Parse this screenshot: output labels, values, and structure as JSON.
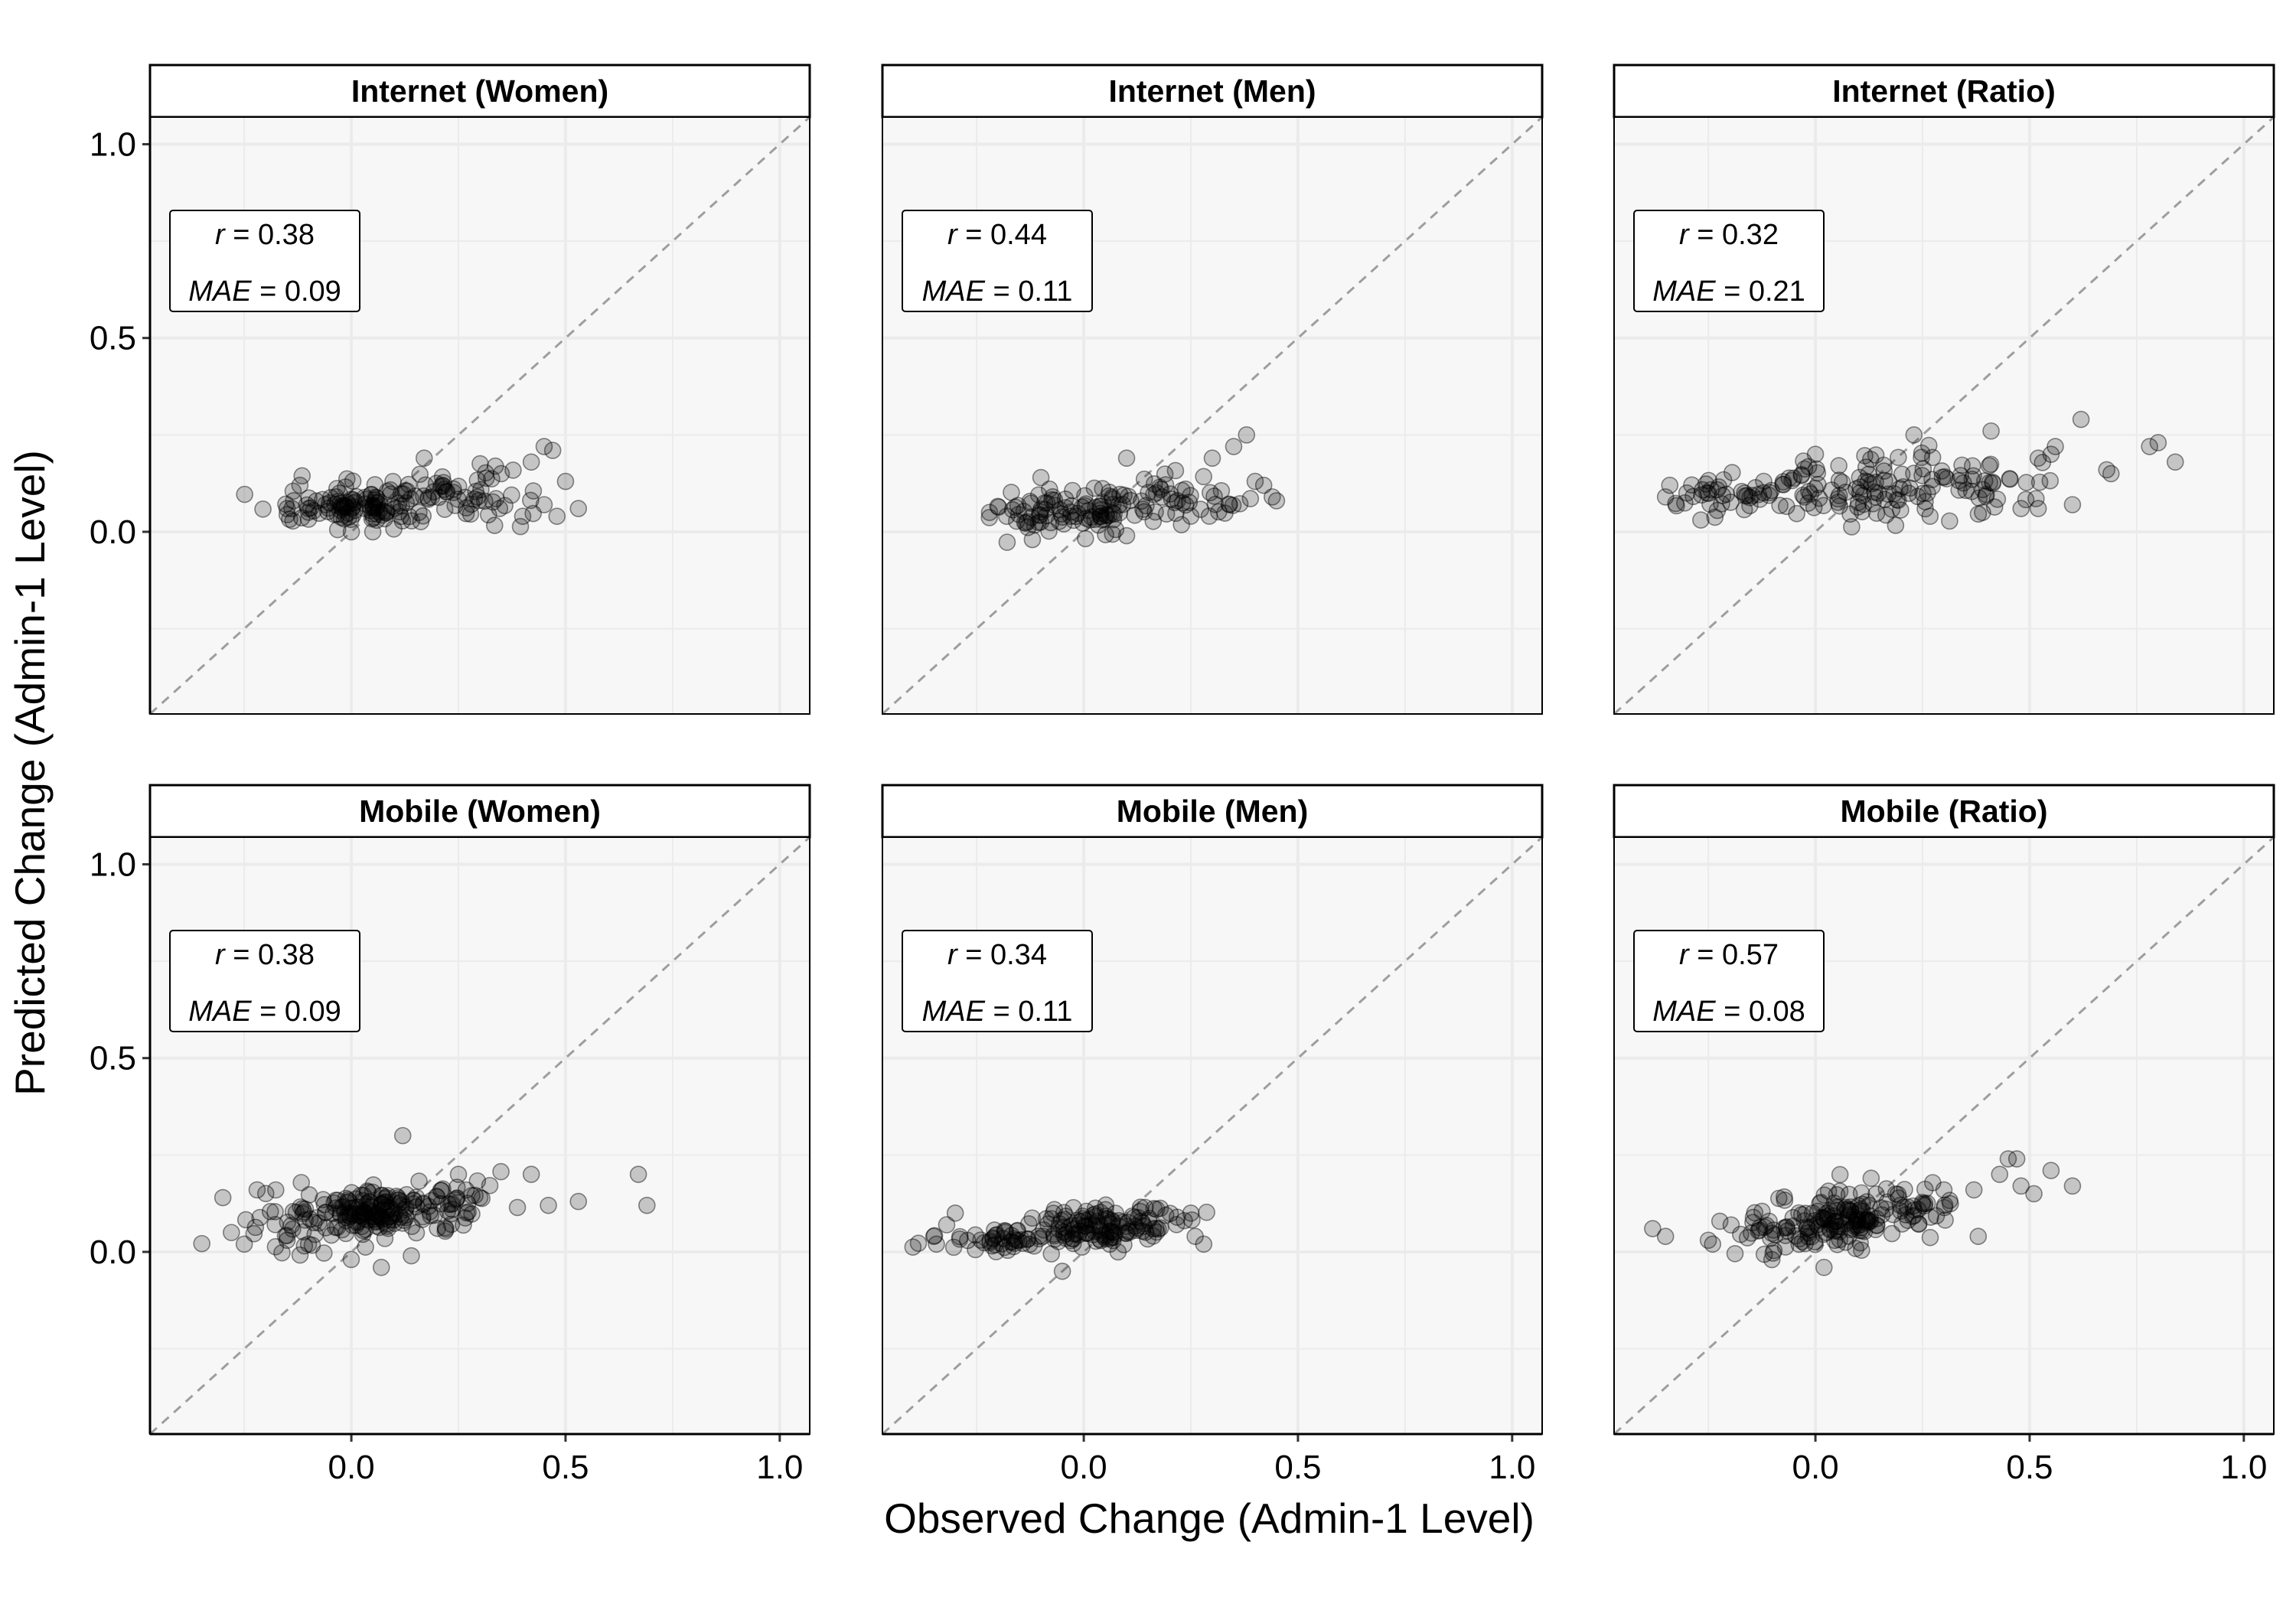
{
  "figure": {
    "xlabel": "Observed Change (Admin-1 Level)",
    "ylabel": "Predicted Change (Admin-1 Level)"
  },
  "colors": {
    "panel_bg": "#f7f7f7",
    "grid": "#ebebeb",
    "point": "#000000",
    "identity_line": "#9e9e9e"
  },
  "chart_data": [
    {
      "type": "scatter",
      "title": "Internet (Women)",
      "xlabel": "Observed Change (Admin-1 Level)",
      "ylabel": "Predicted Change (Admin-1 Level)",
      "xlim": [
        -0.47,
        1.07
      ],
      "ylim": [
        -0.47,
        1.07
      ],
      "xticks": [
        "0.0",
        "0.5",
        "1.0"
      ],
      "yticks": [
        "0.0",
        "0.5",
        "1.0"
      ],
      "grid": true,
      "reference_line": "y = x, dashed",
      "stats": {
        "r_symbol": "r",
        "r_value": "0.38",
        "mae_symbol": "MAE",
        "mae_value": "0.09"
      },
      "seed": 11,
      "n": 170,
      "clusters": [
        {
          "w": 0.55,
          "xm": 0.05,
          "xs": 0.08,
          "ym": 0.07,
          "ys": 0.028
        },
        {
          "w": 0.3,
          "xm": 0.25,
          "xs": 0.09,
          "ym": 0.1,
          "ys": 0.035
        },
        {
          "w": 0.15,
          "xm": -0.08,
          "xs": 0.06,
          "ym": 0.07,
          "ys": 0.03
        }
      ],
      "points": [
        [
          -0.15,
          0.06
        ],
        [
          -0.12,
          0.12
        ],
        [
          -0.1,
          0.06
        ],
        [
          0.35,
          0.15
        ],
        [
          0.4,
          0.04
        ],
        [
          0.42,
          0.18
        ],
        [
          0.45,
          0.22
        ],
        [
          0.47,
          0.21
        ],
        [
          0.48,
          0.04
        ],
        [
          0.5,
          0.13
        ],
        [
          0.53,
          0.06
        ],
        [
          0.0,
          0.0
        ],
        [
          0.05,
          0.0
        ],
        [
          0.17,
          0.19
        ],
        [
          0.45,
          0.07
        ]
      ]
    },
    {
      "type": "scatter",
      "title": "Internet (Men)",
      "xlabel": "Observed Change (Admin-1 Level)",
      "ylabel": "Predicted Change (Admin-1 Level)",
      "xlim": [
        -0.47,
        1.07
      ],
      "ylim": [
        -0.47,
        1.07
      ],
      "xticks": [
        "0.0",
        "0.5",
        "1.0"
      ],
      "yticks": [
        "0.0",
        "0.5",
        "1.0"
      ],
      "grid": true,
      "reference_line": "y = x, dashed",
      "stats": {
        "r_symbol": "r",
        "r_value": "0.44",
        "mae_symbol": "MAE",
        "mae_value": "0.11"
      },
      "seed": 23,
      "n": 140,
      "clusters": [
        {
          "w": 0.5,
          "xm": 0.0,
          "xs": 0.08,
          "ym": 0.05,
          "ys": 0.025
        },
        {
          "w": 0.35,
          "xm": 0.2,
          "xs": 0.09,
          "ym": 0.08,
          "ys": 0.03
        },
        {
          "w": 0.15,
          "xm": -0.15,
          "xs": 0.05,
          "ym": 0.04,
          "ys": 0.025
        }
      ],
      "points": [
        [
          -0.22,
          0.05
        ],
        [
          -0.18,
          0.04
        ],
        [
          -0.1,
          0.14
        ],
        [
          -0.08,
          0.11
        ],
        [
          0.1,
          0.19
        ],
        [
          0.3,
          0.19
        ],
        [
          0.35,
          0.22
        ],
        [
          0.38,
          0.25
        ],
        [
          0.4,
          0.13
        ],
        [
          0.42,
          0.12
        ],
        [
          0.45,
          0.08
        ],
        [
          0.44,
          0.09
        ],
        [
          -0.12,
          -0.02
        ],
        [
          0.1,
          -0.01
        ],
        [
          0.34,
          0.07
        ]
      ]
    },
    {
      "type": "scatter",
      "title": "Internet (Ratio)",
      "xlabel": "Observed Change (Admin-1 Level)",
      "ylabel": "Predicted Change (Admin-1 Level)",
      "xlim": [
        -0.47,
        1.07
      ],
      "ylim": [
        -0.47,
        1.07
      ],
      "xticks": [
        "0.0",
        "0.5",
        "1.0"
      ],
      "yticks": [
        "0.0",
        "0.5",
        "1.0"
      ],
      "grid": true,
      "reference_line": "y = x, dashed",
      "stats": {
        "r_symbol": "r",
        "r_value": "0.32",
        "mae_symbol": "MAE",
        "mae_value": "0.21"
      },
      "seed": 37,
      "n": 170,
      "clusters": [
        {
          "w": 0.45,
          "xm": 0.05,
          "xs": 0.12,
          "ym": 0.11,
          "ys": 0.035
        },
        {
          "w": 0.35,
          "xm": 0.3,
          "xs": 0.12,
          "ym": 0.12,
          "ys": 0.045
        },
        {
          "w": 0.2,
          "xm": -0.2,
          "xs": 0.09,
          "ym": 0.09,
          "ys": 0.025
        }
      ],
      "points": [
        [
          -0.35,
          0.09
        ],
        [
          -0.34,
          0.12
        ],
        [
          -0.3,
          0.1
        ],
        [
          0.52,
          0.19
        ],
        [
          0.55,
          0.2
        ],
        [
          0.56,
          0.22
        ],
        [
          0.6,
          0.07
        ],
        [
          0.62,
          0.29
        ],
        [
          0.68,
          0.16
        ],
        [
          0.69,
          0.15
        ],
        [
          0.78,
          0.22
        ],
        [
          0.8,
          0.23
        ],
        [
          0.84,
          0.18
        ],
        [
          0.52,
          0.06
        ],
        [
          0.48,
          0.06
        ],
        [
          0.39,
          0.05
        ],
        [
          0.23,
          0.25
        ],
        [
          0.41,
          0.26
        ],
        [
          0.0,
          0.2
        ]
      ]
    },
    {
      "type": "scatter",
      "title": "Mobile (Women)",
      "xlabel": "Observed Change (Admin-1 Level)",
      "ylabel": "Predicted Change (Admin-1 Level)",
      "xlim": [
        -0.47,
        1.07
      ],
      "ylim": [
        -0.47,
        1.07
      ],
      "xticks": [
        "0.0",
        "0.5",
        "1.0"
      ],
      "yticks": [
        "0.0",
        "0.5",
        "1.0"
      ],
      "grid": true,
      "reference_line": "y = x, dashed",
      "stats": {
        "r_symbol": "r",
        "r_value": "0.38",
        "mae_symbol": "MAE",
        "mae_value": "0.09"
      },
      "seed": 41,
      "n": 220,
      "clusters": [
        {
          "w": 0.55,
          "xm": 0.05,
          "xs": 0.07,
          "ym": 0.1,
          "ys": 0.03
        },
        {
          "w": 0.2,
          "xm": 0.2,
          "xs": 0.07,
          "ym": 0.12,
          "ys": 0.04
        },
        {
          "w": 0.25,
          "xm": -0.12,
          "xs": 0.08,
          "ym": 0.08,
          "ys": 0.05
        }
      ],
      "points": [
        [
          -0.3,
          0.14
        ],
        [
          -0.28,
          0.05
        ],
        [
          -0.25,
          0.02
        ],
        [
          -0.22,
          0.16
        ],
        [
          0.12,
          0.3
        ],
        [
          0.42,
          0.2
        ],
        [
          0.46,
          0.12
        ],
        [
          0.53,
          0.13
        ],
        [
          0.67,
          0.2
        ],
        [
          0.69,
          0.12
        ],
        [
          0.3,
          0.14
        ],
        [
          0.25,
          0.2
        ],
        [
          0.14,
          -0.01
        ],
        [
          0.07,
          -0.04
        ],
        [
          -0.15,
          0.03
        ],
        [
          -0.1,
          0.02
        ]
      ]
    },
    {
      "type": "scatter",
      "title": "Mobile (Men)",
      "xlabel": "Observed Change (Admin-1 Level)",
      "ylabel": "Predicted Change (Admin-1 Level)",
      "xlim": [
        -0.47,
        1.07
      ],
      "ylim": [
        -0.47,
        1.07
      ],
      "xticks": [
        "0.0",
        "0.5",
        "1.0"
      ],
      "yticks": [
        "0.0",
        "0.5",
        "1.0"
      ],
      "grid": true,
      "reference_line": "y = x, dashed",
      "stats": {
        "r_symbol": "r",
        "r_value": "0.34",
        "mae_symbol": "MAE",
        "mae_value": "0.11"
      },
      "seed": 53,
      "n": 180,
      "clusters": [
        {
          "w": 0.55,
          "xm": 0.0,
          "xs": 0.08,
          "ym": 0.06,
          "ys": 0.025
        },
        {
          "w": 0.25,
          "xm": -0.2,
          "xs": 0.07,
          "ym": 0.03,
          "ys": 0.015
        },
        {
          "w": 0.2,
          "xm": 0.15,
          "xs": 0.05,
          "ym": 0.08,
          "ys": 0.025
        }
      ],
      "points": [
        [
          -0.35,
          0.04
        ],
        [
          -0.32,
          0.07
        ],
        [
          -0.3,
          0.1
        ],
        [
          0.25,
          0.1
        ],
        [
          0.26,
          0.04
        ],
        [
          0.28,
          0.02
        ],
        [
          -0.05,
          -0.05
        ],
        [
          0.08,
          0.0
        ],
        [
          0.17,
          0.11
        ]
      ]
    },
    {
      "type": "scatter",
      "title": "Mobile (Ratio)",
      "xlabel": "Observed Change (Admin-1 Level)",
      "ylabel": "Predicted Change (Admin-1 Level)",
      "xlim": [
        -0.47,
        1.07
      ],
      "ylim": [
        -0.47,
        1.07
      ],
      "xticks": [
        "0.0",
        "0.5",
        "1.0"
      ],
      "yticks": [
        "0.0",
        "0.5",
        "1.0"
      ],
      "grid": true,
      "reference_line": "y = x, dashed",
      "stats": {
        "r_symbol": "r",
        "r_value": "0.57",
        "mae_symbol": "MAE",
        "mae_value": "0.08"
      },
      "seed": 67,
      "n": 190,
      "clusters": [
        {
          "w": 0.6,
          "xm": 0.05,
          "xs": 0.06,
          "ym": 0.08,
          "ys": 0.035
        },
        {
          "w": 0.25,
          "xm": 0.2,
          "xs": 0.06,
          "ym": 0.11,
          "ys": 0.03
        },
        {
          "w": 0.15,
          "xm": -0.12,
          "xs": 0.06,
          "ym": 0.04,
          "ys": 0.025
        }
      ],
      "points": [
        [
          -0.38,
          0.06
        ],
        [
          -0.35,
          0.04
        ],
        [
          -0.25,
          0.03
        ],
        [
          -0.24,
          0.02
        ],
        [
          0.3,
          0.16
        ],
        [
          0.37,
          0.16
        ],
        [
          0.38,
          0.04
        ],
        [
          0.43,
          0.2
        ],
        [
          0.45,
          0.24
        ],
        [
          0.47,
          0.24
        ],
        [
          0.48,
          0.17
        ],
        [
          0.51,
          0.15
        ],
        [
          0.55,
          0.21
        ],
        [
          0.6,
          0.17
        ],
        [
          0.13,
          0.19
        ],
        [
          0.02,
          -0.04
        ]
      ]
    }
  ]
}
